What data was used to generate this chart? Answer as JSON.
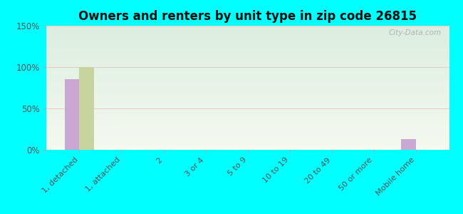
{
  "title": "Owners and renters by unit type in zip code 26815",
  "categories": [
    "1, detached",
    "1, attached",
    "2",
    "3 or 4",
    "5 to 9",
    "10 to 19",
    "20 to 49",
    "50 or more",
    "Mobile home"
  ],
  "owner_values": [
    85,
    0,
    0,
    0,
    0,
    0,
    0,
    0,
    13
  ],
  "renter_values": [
    100,
    0,
    0,
    0,
    0,
    0,
    0,
    0,
    0
  ],
  "owner_color": "#c9a8d4",
  "renter_color": "#c8d4a0",
  "background_outer": "#00ffff",
  "background_inner_top": "#dceee0",
  "background_inner_bottom": "#f5f9f0",
  "ylim": [
    0,
    150
  ],
  "yticks": [
    0,
    50,
    100,
    150
  ],
  "ytick_labels": [
    "0%",
    "50%",
    "100%",
    "150%"
  ],
  "bar_width": 0.35,
  "watermark": "City-Data.com"
}
